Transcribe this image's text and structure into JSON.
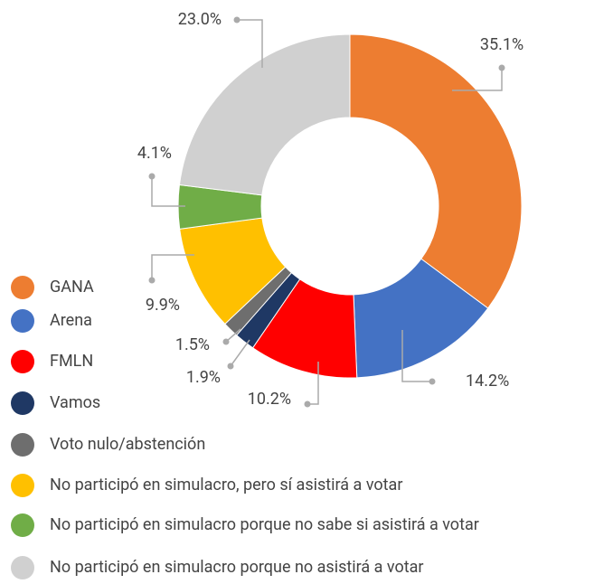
{
  "chart_data": {
    "type": "donut",
    "categories": [
      "GANA",
      "Arena",
      "FMLN",
      "Vamos",
      "Voto nulo/abstención",
      "No participó en simulacro, pero sí asistirá a votar",
      "No participó en simulacro porque no sabe si asistirá a votar",
      "No participó en simulacro porque no asistirá a votar"
    ],
    "values": [
      35.1,
      14.2,
      10.2,
      1.9,
      1.5,
      9.9,
      4.1,
      23.0
    ],
    "value_labels": [
      "35.1%",
      "14.2%",
      "10.2%",
      "1.9%",
      "1.5%",
      "9.9%",
      "4.1%",
      "23.0%"
    ],
    "colors": [
      "#ED7D31",
      "#4472C4",
      "#FF0000",
      "#1F3864",
      "#6E6E6E",
      "#FFC000",
      "#70AD47",
      "#D0D0D0"
    ],
    "legend": "bottom-left"
  }
}
